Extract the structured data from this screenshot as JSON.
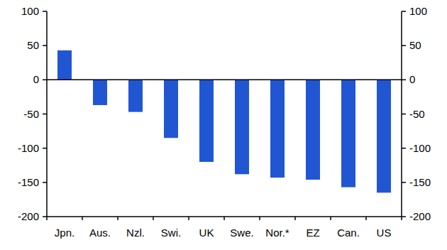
{
  "chart_data": {
    "type": "bar",
    "categories": [
      "Jpn.",
      "Aus.",
      "Nzl.",
      "Swi.",
      "UK",
      "Swe.",
      "Nor.*",
      "EZ",
      "Can.",
      "US"
    ],
    "values": [
      43,
      -37,
      -47,
      -85,
      -120,
      -138,
      -143,
      -146,
      -157,
      -165
    ],
    "color": "#2156d3",
    "ylim": [
      -200,
      100
    ],
    "yticks": [
      -200,
      -150,
      -100,
      -50,
      0,
      50,
      100
    ],
    "grid": false
  }
}
